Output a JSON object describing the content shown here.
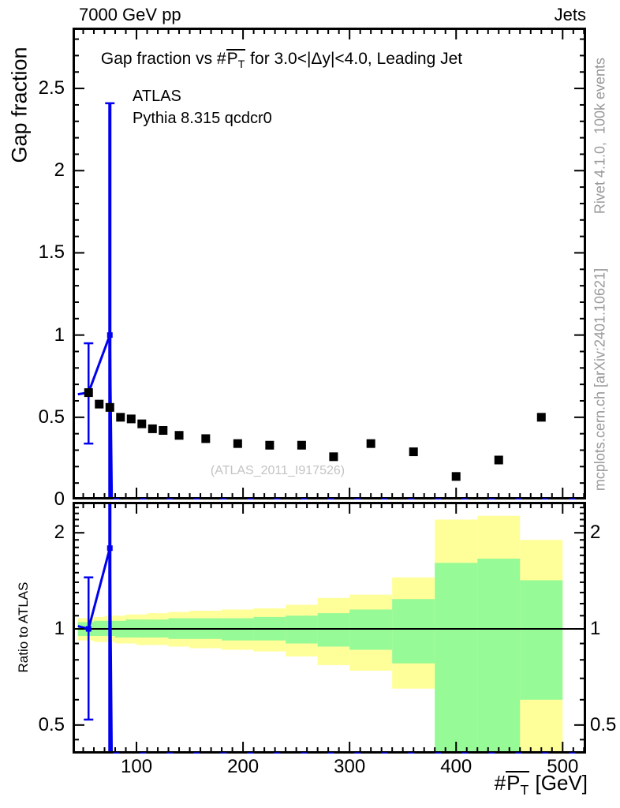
{
  "header": {
    "left": "7000 GeV pp",
    "right": "Jets"
  },
  "title": {
    "pre": "Gap fraction vs #",
    "pbar": "P",
    "psub": "T",
    "post": " for 3.0<|Δy|<4.0, Leading Jet"
  },
  "legend": {
    "entries": [
      {
        "label": "ATLAS",
        "marker": "black-square"
      },
      {
        "label": "Pythia 8.315 qcdcr0",
        "marker": "blue-line"
      }
    ]
  },
  "watermark": "(ATLAS_2011_I917526)",
  "credits": {
    "right_top": "Rivet 4.1.0,  100k events",
    "right_bottom": "mcplots.cern.ch [arXiv:2401.10621]"
  },
  "xaxis_label": {
    "pre": "#",
    "pbar": "P",
    "psub": "T",
    "post": " [GeV]"
  },
  "colors": {
    "blue": "#0000ee",
    "band_green": "#96fa96",
    "band_yellow": "#ffff9a",
    "gray_text": "#999999",
    "watermark_gray": "#c3c3c3",
    "black": "#000000"
  },
  "chart_data": [
    {
      "id": "main-panel",
      "type": "scatter",
      "title": "Gap fraction vs #PT for 3.0<|Δy|<4.0, Leading Jet",
      "ylabel": "Gap fraction",
      "xlabel": "#PT [GeV]",
      "xlim": [
        40,
        522
      ],
      "ylim": [
        0,
        2.87
      ],
      "xticks_major": [
        100,
        200,
        300,
        400,
        500
      ],
      "xtick_minor_step": 10,
      "yticks_major": [
        0,
        0.5,
        1,
        1.5,
        2,
        2.5
      ],
      "ytick_minor_step": 0.1,
      "grid": false,
      "legend_position": "top-left-inside",
      "series": [
        {
          "name": "ATLAS",
          "type": "scatter",
          "marker": "filled-square",
          "color": "#000000",
          "x": [
            55,
            65,
            75,
            85,
            95,
            105,
            115,
            125,
            140,
            165,
            195,
            225,
            255,
            285,
            320,
            360,
            400,
            440,
            480
          ],
          "y": [
            0.65,
            0.58,
            0.56,
            0.5,
            0.49,
            0.46,
            0.43,
            0.42,
            0.39,
            0.37,
            0.34,
            0.33,
            0.33,
            0.26,
            0.34,
            0.29,
            0.14,
            0.24,
            0.5
          ]
        },
        {
          "name": "Pythia 8.315 qcdcr0",
          "type": "line",
          "color": "#0000ee",
          "segments": [
            [
              [
                45,
                0.64
              ],
              [
                55,
                0.65
              ],
              [
                75,
                1.0
              ],
              [
                76.8,
                0.0
              ]
            ],
            [
              [
                78,
                0.0
              ],
              [
                522,
                0.0
              ]
            ]
          ],
          "points": [
            {
              "x": 55,
              "y": 0.65,
              "err_lo": 0.34,
              "err_hi": 0.95,
              "caps": "both"
            },
            {
              "x": 75,
              "y": 1.0,
              "err_lo": -0.1,
              "err_hi": 2.41,
              "caps": "top"
            }
          ]
        }
      ]
    },
    {
      "id": "ratio-panel",
      "type": "bands+line",
      "ylabel": "Ratio to ATLAS",
      "yscale": "log",
      "xlim": [
        40,
        522
      ],
      "ylim": [
        0.407,
        2.5
      ],
      "xticks_major": [
        100,
        200,
        300,
        400,
        500
      ],
      "xtick_minor_step": 10,
      "yticks_major": [
        0.5,
        1,
        2
      ],
      "reference_line": 1,
      "bin_edges": [
        45,
        60,
        70,
        80,
        90,
        100,
        110,
        120,
        130,
        150,
        180,
        210,
        240,
        270,
        300,
        340,
        380,
        420,
        460,
        500
      ],
      "band_yellow": {
        "lo": [
          0.92,
          0.91,
          0.91,
          0.9,
          0.9,
          0.89,
          0.89,
          0.89,
          0.88,
          0.87,
          0.86,
          0.85,
          0.82,
          0.77,
          0.74,
          0.65,
          0.37,
          0.37,
          0.37
        ],
        "hi": [
          1.08,
          1.09,
          1.1,
          1.1,
          1.11,
          1.11,
          1.12,
          1.12,
          1.13,
          1.14,
          1.15,
          1.16,
          1.19,
          1.25,
          1.28,
          1.45,
          2.2,
          2.26,
          1.9
        ]
      },
      "band_green": {
        "lo": [
          0.95,
          0.95,
          0.95,
          0.94,
          0.94,
          0.94,
          0.94,
          0.94,
          0.93,
          0.93,
          0.92,
          0.92,
          0.9,
          0.88,
          0.86,
          0.78,
          0.37,
          0.37,
          0.6
        ],
        "hi": [
          1.05,
          1.06,
          1.06,
          1.06,
          1.07,
          1.07,
          1.07,
          1.07,
          1.08,
          1.08,
          1.08,
          1.09,
          1.1,
          1.12,
          1.15,
          1.24,
          1.61,
          1.66,
          1.42
        ]
      },
      "line": {
        "name": "Pythia 8.315 qcdcr0 / ATLAS",
        "color": "#0000ee",
        "segments": [
          [
            [
              45,
              1.02
            ],
            [
              55,
              1.0
            ],
            [
              75,
              1.79
            ],
            [
              76.8,
              0.37
            ]
          ],
          [
            [
              78,
              0.407
            ],
            [
              522,
              0.407
            ]
          ]
        ],
        "points": [
          {
            "x": 55,
            "y": 1.0,
            "err_lo": 0.52,
            "err_hi": 1.45,
            "caps": "both"
          },
          {
            "x": 75,
            "y": 1.79,
            "err_lo": 0.3,
            "err_hi": 2.6,
            "caps": "none"
          }
        ]
      }
    }
  ]
}
